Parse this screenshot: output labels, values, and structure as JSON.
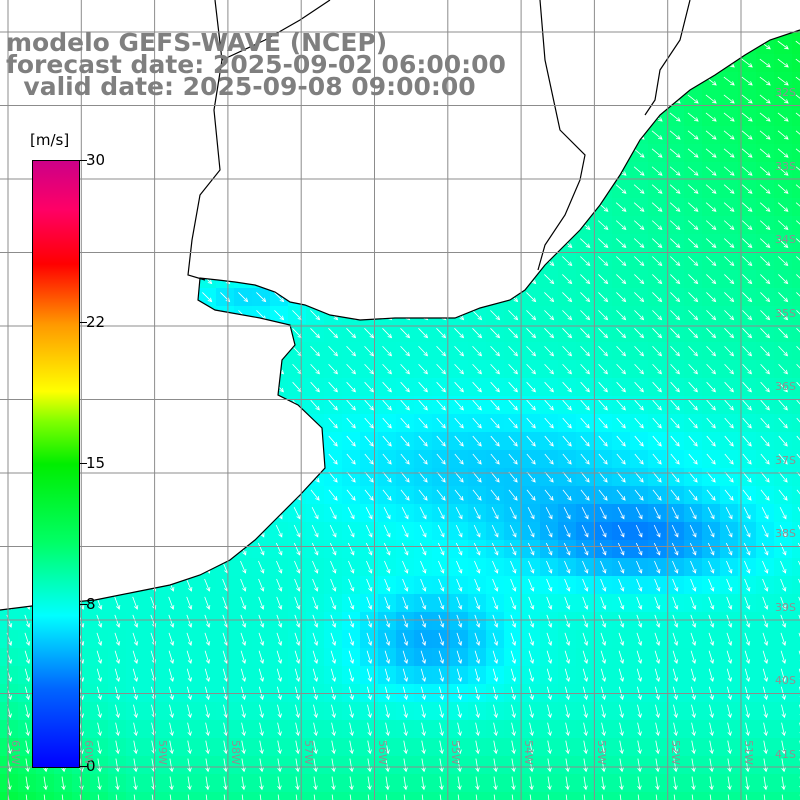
{
  "title": {
    "line1": "modelo GEFS-WAVE (NCEP)",
    "line2": "forecast date: 2025-09-02 06:00:00",
    "line3": "  valid date: 2025-09-08 09:00:00"
  },
  "colorbar": {
    "units": "[m/s]",
    "ticks": [
      "30",
      "22",
      "15",
      "8",
      "0"
    ],
    "tick_values": [
      30,
      22,
      15,
      8,
      0
    ],
    "range": [
      0,
      30
    ]
  },
  "lat_labels": [
    "32S",
    "33S",
    "34S",
    "35S",
    "36S",
    "37S",
    "38S",
    "39S",
    "40S",
    "41S"
  ],
  "lon_labels": [
    "61W",
    "60W",
    "59W",
    "58W",
    "57W",
    "56W",
    "55W",
    "54W",
    "53W",
    "52W",
    "51W"
  ],
  "colors": {
    "land": "#ffffff",
    "grid": "#8c8c8c",
    "coast": "#000000",
    "arrow": "#ffffff",
    "title": "#7f7f7f"
  }
}
